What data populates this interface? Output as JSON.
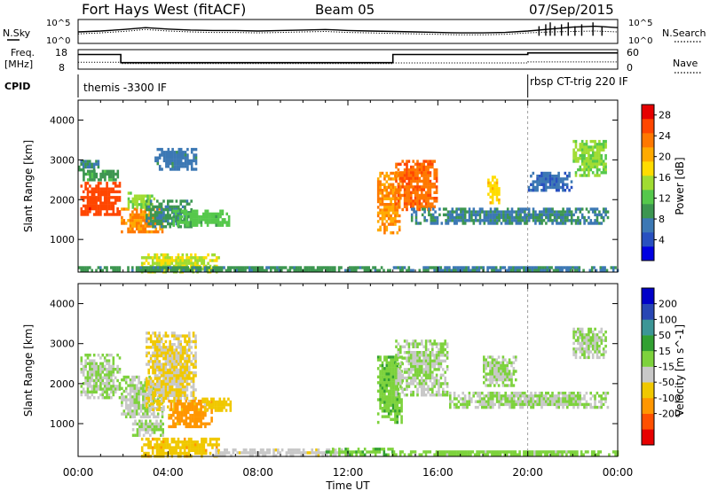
{
  "header": {
    "station": "Fort Hays West (fitACF)",
    "beam": "Beam 05",
    "date": "07/Sep/2015"
  },
  "left_labels": {
    "nsky": "N.Sky",
    "freq": "Freq.",
    "freq_unit": "[MHz]",
    "cpid": "CPID"
  },
  "right_labels": {
    "nsearch": "N.Search",
    "nave": "Nave"
  },
  "top_ticks": {
    "noise_left": [
      "10^5",
      "10^0"
    ],
    "noise_right": [
      "10^5",
      "10^0"
    ],
    "freq_left": [
      "18",
      "8"
    ],
    "freq_right": [
      "60",
      "0"
    ]
  },
  "cpid_segments": [
    {
      "label": "themis -3300 IF",
      "start": 0,
      "end": 20.0
    },
    {
      "label": "rbsp CT-trig 220 IF",
      "start": 20.0,
      "end": 24
    }
  ],
  "xaxis": {
    "label": "Time UT",
    "ticks": [
      "00:00",
      "04:00",
      "08:00",
      "12:00",
      "16:00",
      "20:00",
      "00:00"
    ]
  },
  "chart_data": [
    {
      "type": "line",
      "name": "noise",
      "series": [
        {
          "name": "N.Sky",
          "style": "solid",
          "values_log10": [
            2.4,
            2.6,
            2.9,
            3.3,
            3.0,
            2.8,
            2.7,
            2.7,
            2.6,
            2.7,
            2.8,
            2.9,
            2.7,
            2.6,
            2.5,
            2.4,
            2.3,
            2.2,
            2.2,
            2.3,
            2.6,
            3.0,
            3.4,
            3.6,
            3.3
          ]
        },
        {
          "name": "N.Search",
          "style": "dotted",
          "values_log10": [
            2.0,
            2.2,
            2.5,
            2.9,
            2.6,
            2.4,
            2.3,
            2.3,
            2.2,
            2.3,
            2.4,
            2.5,
            2.3,
            2.2,
            2.1,
            2.0,
            1.9,
            1.8,
            1.8,
            1.9,
            2.2,
            2.4,
            2.5,
            2.6,
            2.4
          ]
        }
      ],
      "x": [
        0,
        1,
        2,
        3,
        4,
        5,
        6,
        7,
        8,
        9,
        10,
        11,
        12,
        13,
        14,
        15,
        16,
        17,
        18,
        19,
        20,
        21,
        22,
        23,
        24
      ],
      "ylim_log10": [
        0,
        5
      ]
    },
    {
      "type": "line",
      "name": "frequency",
      "series": [
        {
          "name": "Freq",
          "style": "solid",
          "x": [
            0,
            1.9,
            1.9,
            14.0,
            14.0,
            20.0,
            20.0,
            24
          ],
          "values": [
            15.5,
            15.5,
            11.3,
            11.3,
            15.5,
            15.5,
            16.3,
            16.3
          ]
        },
        {
          "name": "Nave",
          "style": "dotted",
          "x": [
            0,
            1.9,
            1.9,
            14.0,
            14.0,
            20.0,
            20.0,
            24
          ],
          "values": [
            21,
            21,
            17,
            17,
            19,
            19,
            22,
            22
          ]
        }
      ],
      "ylim_left": [
        8,
        18
      ],
      "ylim_right": [
        0,
        60
      ]
    },
    {
      "type": "heatmap",
      "name": "power",
      "xlabel": "",
      "ylabel": "Slant Range [km]",
      "xlim": [
        0,
        24
      ],
      "ylim": [
        180,
        4500
      ],
      "yticks": [
        1000,
        2000,
        3000,
        4000
      ],
      "colorbar": {
        "label": "Power [dB]",
        "ticks": [
          4,
          8,
          12,
          16,
          20,
          24,
          28
        ],
        "range": [
          0,
          30
        ],
        "colors": [
          "#0000e0",
          "#2850c0",
          "#3c78b4",
          "#3c9650",
          "#55c84b",
          "#a0dc32",
          "#ffdc00",
          "#ffaa00",
          "#ff7800",
          "#ff4600",
          "#e60000"
        ]
      },
      "patches": [
        {
          "t0": 0.1,
          "t1": 1.9,
          "r0": 1600,
          "r1": 2450,
          "v": 26
        },
        {
          "t0": 0.2,
          "t1": 1.8,
          "r0": 2450,
          "r1": 2750,
          "v": 10
        },
        {
          "t0": 0.0,
          "t1": 0.9,
          "r0": 2750,
          "r1": 3000,
          "v": 8
        },
        {
          "t0": 1.9,
          "t1": 3.8,
          "r0": 1150,
          "r1": 1800,
          "v": 22
        },
        {
          "t0": 2.2,
          "t1": 3.4,
          "r0": 1800,
          "r1": 2200,
          "v": 14
        },
        {
          "t0": 3.0,
          "t1": 5.2,
          "r0": 1300,
          "r1": 2000,
          "v": 9
        },
        {
          "t0": 3.4,
          "t1": 5.3,
          "r0": 2700,
          "r1": 3300,
          "v": 7
        },
        {
          "t0": 4.2,
          "t1": 6.8,
          "r0": 1300,
          "r1": 1750,
          "v": 12
        },
        {
          "t0": 2.8,
          "t1": 6.3,
          "r0": 180,
          "r1": 650,
          "v": 16
        },
        {
          "t0": 0.0,
          "t1": 14.0,
          "r0": 180,
          "r1": 330,
          "v": 9
        },
        {
          "t0": 13.3,
          "t1": 14.3,
          "r0": 1100,
          "r1": 2700,
          "v": 22
        },
        {
          "t0": 14.1,
          "t1": 16.0,
          "r0": 1700,
          "r1": 3000,
          "v": 24
        },
        {
          "t0": 14.8,
          "t1": 23.6,
          "r0": 1350,
          "r1": 1800,
          "v": 8
        },
        {
          "t0": 18.2,
          "t1": 18.8,
          "r0": 1900,
          "r1": 2600,
          "v": 18
        },
        {
          "t0": 20.0,
          "t1": 22.0,
          "r0": 2200,
          "r1": 2700,
          "v": 6
        },
        {
          "t0": 22.0,
          "t1": 23.5,
          "r0": 2600,
          "r1": 3500,
          "v": 14
        },
        {
          "t0": 14.0,
          "t1": 24.0,
          "r0": 180,
          "r1": 330,
          "v": 8
        }
      ]
    },
    {
      "type": "heatmap",
      "name": "velocity",
      "xlabel": "Time UT",
      "ylabel": "Slant Range [km]",
      "xlim": [
        0,
        24
      ],
      "ylim": [
        180,
        4500
      ],
      "yticks": [
        1000,
        2000,
        3000,
        4000
      ],
      "colorbar": {
        "label": "Velocity [m s^-1]",
        "ticks": [
          200,
          100,
          50,
          15,
          -15,
          -50,
          -100,
          -200
        ],
        "range": [
          -250,
          250
        ],
        "colors": [
          "#e60000",
          "#ff5000",
          "#ff9600",
          "#f0c800",
          "#c8c8c8",
          "#7dd23c",
          "#32a032",
          "#3c9696",
          "#2846b4",
          "#0000c8"
        ]
      },
      "patches": [
        {
          "t0": 0.1,
          "t1": 1.9,
          "r0": 1600,
          "r1": 2750,
          "v": 0
        },
        {
          "t0": 1.9,
          "t1": 3.8,
          "r0": 1150,
          "r1": 2200,
          "v": 0
        },
        {
          "t0": 3.0,
          "t1": 5.3,
          "r0": 1300,
          "r1": 3300,
          "v": -55
        },
        {
          "t0": 2.4,
          "t1": 3.8,
          "r0": 700,
          "r1": 1100,
          "v": 0
        },
        {
          "t0": 4.0,
          "t1": 6.0,
          "r0": 900,
          "r1": 1600,
          "v": -120
        },
        {
          "t0": 5.5,
          "t1": 6.8,
          "r0": 1300,
          "r1": 1650,
          "v": -70
        },
        {
          "t0": 2.8,
          "t1": 6.3,
          "r0": 180,
          "r1": 650,
          "v": -80
        },
        {
          "t0": 6.0,
          "t1": 12.0,
          "r0": 180,
          "r1": 380,
          "v": -30
        },
        {
          "t0": 11.0,
          "t1": 14.0,
          "r0": 180,
          "r1": 400,
          "v": 40
        },
        {
          "t0": 13.3,
          "t1": 14.4,
          "r0": 1000,
          "r1": 2700,
          "v": 35
        },
        {
          "t0": 14.1,
          "t1": 16.5,
          "r0": 1700,
          "r1": 3100,
          "v": 0
        },
        {
          "t0": 16.5,
          "t1": 23.6,
          "r0": 1350,
          "r1": 1800,
          "v": 0
        },
        {
          "t0": 18.0,
          "t1": 19.5,
          "r0": 1900,
          "r1": 2700,
          "v": 0
        },
        {
          "t0": 22.0,
          "t1": 23.5,
          "r0": 2600,
          "r1": 3400,
          "v": 0
        },
        {
          "t0": 14.0,
          "t1": 24.0,
          "r0": 180,
          "r1": 330,
          "v": 20
        }
      ]
    }
  ]
}
